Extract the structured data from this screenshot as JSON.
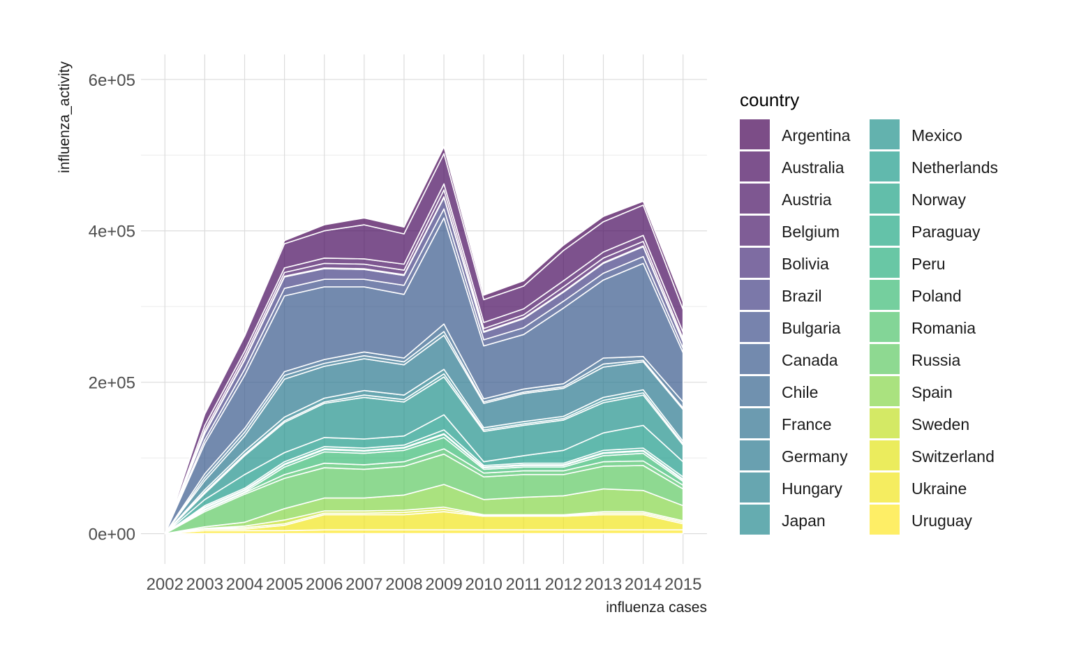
{
  "chart_data": {
    "type": "area",
    "stacked": true,
    "xlabel": "influenza cases",
    "ylabel": "influenza_activity",
    "ylim": [
      -40000,
      600000
    ],
    "y_ticks": [
      0,
      200000,
      400000,
      600000
    ],
    "y_tick_labels": [
      "0e+00",
      "2e+05",
      "4e+05",
      "6e+05"
    ],
    "x": [
      2002,
      2003,
      2004,
      2005,
      2006,
      2007,
      2008,
      2009,
      2010,
      2011,
      2012,
      2013,
      2014,
      2015
    ],
    "x_tick_labels": [
      "2002",
      "2003",
      "2004",
      "2005",
      "2006",
      "2007",
      "2008",
      "2009",
      "2010",
      "2011",
      "2012",
      "2013",
      "2014",
      "2015"
    ],
    "grid": true,
    "legend": {
      "title": "country",
      "position": "right",
      "columns": 2
    },
    "series": [
      {
        "name": "Argentina",
        "color": "#440154",
        "values": [
          0,
          3000,
          3000,
          4000,
          8000,
          9000,
          9000,
          9000,
          6000,
          7000,
          7000,
          7000,
          5000,
          10000
        ]
      },
      {
        "name": "Australia",
        "color": "#46085C",
        "values": [
          0,
          15000,
          20000,
          32000,
          36000,
          45000,
          40000,
          40000,
          30000,
          30000,
          40000,
          40000,
          40000,
          30000
        ]
      },
      {
        "name": "Austria",
        "color": "#471063",
        "values": [
          0,
          6000,
          6000,
          6000,
          7000,
          7000,
          8000,
          8000,
          8000,
          8000,
          8000,
          8000,
          8000,
          8000
        ]
      },
      {
        "name": "Belgium",
        "color": "#48186A",
        "values": [
          0,
          4000,
          5000,
          5000,
          6000,
          6000,
          6000,
          9000,
          4000,
          4000,
          6000,
          6000,
          6000,
          4000
        ]
      },
      {
        "name": "Bolivia",
        "color": "#472D7B",
        "values": [
          0,
          1000,
          1000,
          1000,
          1000,
          1000,
          1000,
          1000,
          1000,
          1000,
          1000,
          1000,
          1000,
          1000
        ]
      },
      {
        "name": "Brazil",
        "color": "#433E85",
        "values": [
          0,
          8000,
          12000,
          15000,
          14000,
          13000,
          13000,
          15000,
          10000,
          12000,
          12000,
          13000,
          13000,
          8000
        ]
      },
      {
        "name": "Bulgaria",
        "color": "#3D4E8A",
        "values": [
          0,
          5000,
          8000,
          10000,
          10000,
          10000,
          12000,
          12000,
          8000,
          9000,
          9000,
          9000,
          9000,
          6000
        ]
      },
      {
        "name": "Canada",
        "color": "#38588C",
        "values": [
          0,
          40000,
          70000,
          100000,
          96000,
          86000,
          84000,
          140000,
          70000,
          72000,
          100000,
          103000,
          123000,
          65000
        ]
      },
      {
        "name": "Chile",
        "color": "#33638D",
        "values": [
          0,
          5000,
          5000,
          5000,
          5000,
          5000,
          5000,
          10000,
          4000,
          4000,
          4000,
          8000,
          5000,
          8000
        ]
      },
      {
        "name": "France",
        "color": "#2D708E",
        "values": [
          0,
          4000,
          5000,
          5000,
          4000,
          4000,
          4000,
          5000,
          2000,
          2000,
          2000,
          4000,
          2000,
          2000
        ]
      },
      {
        "name": "Germany",
        "color": "#2A788E",
        "values": [
          0,
          12000,
          20000,
          50000,
          42000,
          42000,
          40000,
          45000,
          32000,
          37000,
          37000,
          40000,
          37000,
          42000
        ]
      },
      {
        "name": "Hungary",
        "color": "#27808E",
        "values": [
          0,
          3000,
          4000,
          5000,
          5000,
          6000,
          6000,
          6000,
          3000,
          3000,
          3000,
          4000,
          4000,
          3000
        ]
      },
      {
        "name": "Japan",
        "color": "#23898E",
        "values": [
          0,
          2000,
          2000,
          2000,
          2000,
          3000,
          3000,
          4000,
          2000,
          2000,
          2000,
          3000,
          3000,
          2000
        ]
      },
      {
        "name": "Mexico",
        "color": "#21918C",
        "values": [
          0,
          8000,
          25000,
          40000,
          45000,
          55000,
          45000,
          50000,
          40000,
          40000,
          40000,
          40000,
          40000,
          22000
        ]
      },
      {
        "name": "Netherlands",
        "color": "#1E9B8A",
        "values": [
          0,
          8000,
          18000,
          12000,
          12000,
          12000,
          12000,
          20000,
          5000,
          10000,
          17000,
          23000,
          30000,
          20000
        ]
      },
      {
        "name": "Norway",
        "color": "#20A386",
        "values": [
          0,
          2000,
          2000,
          3000,
          3000,
          3000,
          3000,
          5000,
          2000,
          2000,
          2000,
          3000,
          3000,
          3000
        ]
      },
      {
        "name": "Paraguay",
        "color": "#22A884",
        "values": [
          0,
          1000,
          1000,
          1000,
          1000,
          1000,
          1000,
          1000,
          1000,
          1000,
          1000,
          1000,
          1000,
          1000
        ]
      },
      {
        "name": "Peru",
        "color": "#29AF7F",
        "values": [
          0,
          2000,
          2000,
          3000,
          3000,
          3000,
          3000,
          4000,
          2000,
          2000,
          2000,
          3000,
          3000,
          2000
        ]
      },
      {
        "name": "Poland",
        "color": "#3BBB75",
        "values": [
          0,
          1000,
          1000,
          10000,
          15000,
          15000,
          15000,
          15000,
          5000,
          5000,
          5000,
          8000,
          10000,
          5000
        ]
      },
      {
        "name": "Romania",
        "color": "#4EC36B",
        "values": [
          0,
          2000,
          2000,
          5000,
          6000,
          6000,
          6000,
          7000,
          5000,
          5000,
          5000,
          6000,
          6000,
          5000
        ]
      },
      {
        "name": "Russia",
        "color": "#5EC962",
        "values": [
          0,
          20000,
          37000,
          40000,
          40000,
          38000,
          38000,
          40000,
          30000,
          30000,
          28000,
          30000,
          33000,
          22000
        ]
      },
      {
        "name": "Spain",
        "color": "#86D549",
        "values": [
          0,
          2000,
          5000,
          15000,
          17000,
          17000,
          20000,
          30000,
          20000,
          23000,
          25000,
          30000,
          28000,
          20000
        ]
      },
      {
        "name": "Sweden",
        "color": "#C2DF23",
        "values": [
          0,
          500,
          2000,
          5000,
          3000,
          3000,
          3000,
          3000,
          1000,
          1000,
          1000,
          2000,
          2000,
          2000
        ]
      },
      {
        "name": "Switzerland",
        "color": "#E2E418",
        "values": [
          0,
          500,
          2000,
          2000,
          2000,
          2000,
          3000,
          3000,
          1000,
          1000,
          1000,
          2000,
          2000,
          2000
        ]
      },
      {
        "name": "Ukraine",
        "color": "#F1E51D",
        "values": [
          0,
          2000,
          2000,
          7000,
          20000,
          20000,
          20000,
          24000,
          18000,
          18000,
          18000,
          20000,
          20000,
          8000
        ]
      },
      {
        "name": "Uruguay",
        "color": "#FDE725",
        "values": [
          0,
          4000,
          4000,
          4000,
          5000,
          5000,
          5000,
          5000,
          5000,
          5000,
          5000,
          5000,
          5000,
          5000
        ]
      }
    ]
  }
}
